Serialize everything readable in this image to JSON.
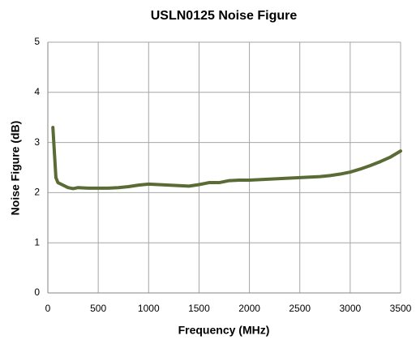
{
  "chart_data": {
    "type": "line",
    "title": "USLN0125 Noise Figure",
    "xlabel": "Frequency (MHz)",
    "ylabel": "Noise Figure (dB)",
    "x": [
      50,
      80,
      100,
      150,
      200,
      250,
      300,
      400,
      500,
      600,
      700,
      800,
      900,
      1000,
      1100,
      1200,
      1300,
      1400,
      1500,
      1600,
      1700,
      1800,
      1900,
      2000,
      2100,
      2200,
      2300,
      2400,
      2500,
      2600,
      2700,
      2800,
      2900,
      3000,
      3100,
      3200,
      3300,
      3400,
      3500
    ],
    "series": [
      {
        "name": "Noise Figure",
        "color": "#5a6b36",
        "values": [
          3.3,
          2.3,
          2.2,
          2.15,
          2.1,
          2.08,
          2.1,
          2.09,
          2.09,
          2.09,
          2.1,
          2.12,
          2.15,
          2.17,
          2.16,
          2.15,
          2.14,
          2.13,
          2.16,
          2.2,
          2.2,
          2.24,
          2.25,
          2.25,
          2.26,
          2.27,
          2.28,
          2.29,
          2.3,
          2.31,
          2.32,
          2.34,
          2.37,
          2.41,
          2.47,
          2.54,
          2.62,
          2.71,
          2.83
        ]
      }
    ],
    "xlim": [
      0,
      3500
    ],
    "xticks": [
      0,
      500,
      1000,
      1500,
      2000,
      2500,
      3000,
      3500
    ],
    "ylim": [
      0,
      5
    ],
    "yticks": [
      0,
      1,
      2,
      3,
      4,
      5
    ],
    "grid": true
  }
}
